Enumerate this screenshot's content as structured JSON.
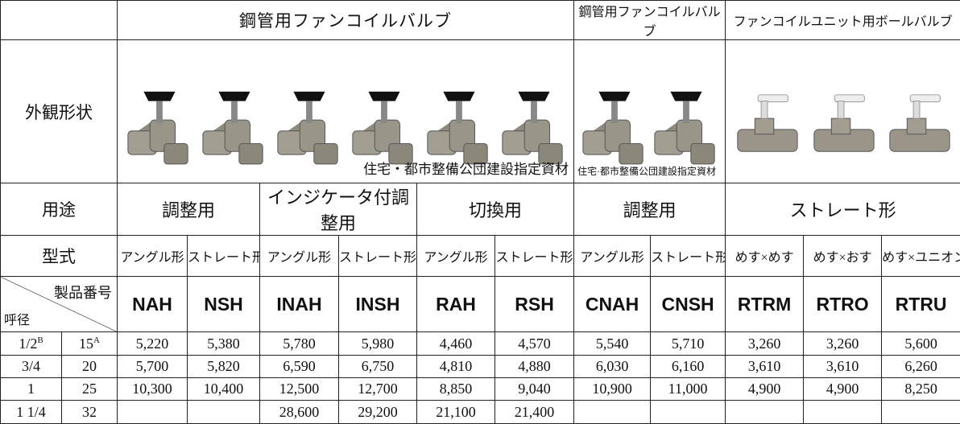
{
  "header": {
    "groups": [
      "鋼管用ファンコイルバルブ",
      "鋼管用ファンコイルバルブ",
      "ファンコイルユニット用ボールバルブ"
    ]
  },
  "labels": {
    "appearance": "外観形状",
    "usage": "用途",
    "type": "型式",
    "product_no": "製品番号",
    "nominal": "呼径"
  },
  "notes": [
    "住宅・都市整備公団建設指定資材",
    "住宅·都市整備公団建設指定資材"
  ],
  "usage": [
    "調整用",
    "インジケータ付調整用",
    "切換用",
    "調整用",
    "ストレート形"
  ],
  "types": [
    "アングル形",
    "ストレート形",
    "アングル形",
    "ストレート形",
    "アングル形",
    "ストレート形",
    "アングル形",
    "ストレート形",
    "めす×めす",
    "めす×おす",
    "めす×ユニオン"
  ],
  "codes": [
    "NAH",
    "NSH",
    "INAH",
    "INSH",
    "RAH",
    "RSH",
    "CNAH",
    "CNSH",
    "RTRM",
    "RTRO",
    "RTRU"
  ],
  "rows": [
    {
      "inch": "1/2",
      "inch_mark": "B",
      "mm": "15",
      "mm_mark": "A",
      "prices": [
        "5,220",
        "5,380",
        "5,780",
        "5,980",
        "4,460",
        "4,570",
        "5,540",
        "5,710",
        "3,260",
        "3,260",
        "5,600"
      ]
    },
    {
      "inch": "3/4",
      "mm": "20",
      "prices": [
        "5,700",
        "5,820",
        "6,590",
        "6,750",
        "4,810",
        "4,880",
        "6,030",
        "6,160",
        "3,610",
        "3,610",
        "6,260"
      ]
    },
    {
      "inch": "1",
      "mm": "25",
      "prices": [
        "10,300",
        "10,400",
        "12,500",
        "12,700",
        "8,850",
        "9,040",
        "10,900",
        "11,000",
        "4,900",
        "4,900",
        "8,250"
      ]
    },
    {
      "inch": "1 1/4",
      "mm": "32",
      "prices": [
        null,
        null,
        "28,600",
        "29,200",
        "21,100",
        "21,400",
        null,
        null,
        null,
        null,
        null
      ]
    }
  ]
}
